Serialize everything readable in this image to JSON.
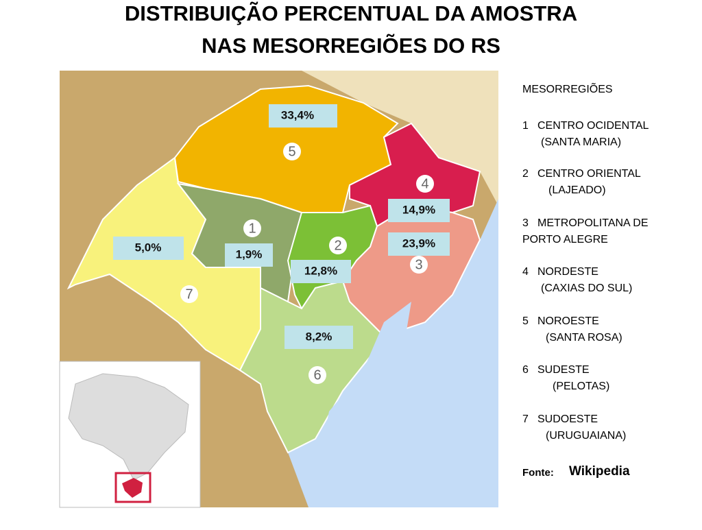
{
  "title": [
    "DISTRIBUIÇÃO PERCENTUAL DA AMOSTRA",
    "NAS MESORREGIÕES DO RS"
  ],
  "map": {
    "regions": [
      {
        "number": "1",
        "share": "1,9%"
      },
      {
        "number": "2",
        "share": "12,8%"
      },
      {
        "number": "3",
        "share": "23,9%"
      },
      {
        "number": "4",
        "share": "14,9%"
      },
      {
        "number": "5",
        "share": "33,4%"
      },
      {
        "number": "6",
        "share": "8,2%"
      },
      {
        "number": "7",
        "share": "5,0%"
      }
    ]
  },
  "legend": {
    "heading": "MESORREGIÕES",
    "items": [
      {
        "number": "1",
        "lines": [
          "CENTRO OCIDENTAL",
          "(SANTA MARIA)"
        ]
      },
      {
        "number": "2",
        "lines": [
          "CENTRO ORIENTAL",
          "(LAJEADO)"
        ]
      },
      {
        "number": "3",
        "lines": [
          "METROPOLITANA DE",
          "PORTO ALEGRE"
        ]
      },
      {
        "number": "4",
        "lines": [
          "NORDESTE",
          "(CAXIAS DO SUL)"
        ]
      },
      {
        "number": "5",
        "lines": [
          "NOROESTE",
          "(SANTA ROSA)"
        ]
      },
      {
        "number": "6",
        "lines": [
          "SUDESTE",
          "(PELOTAS)"
        ]
      },
      {
        "number": "7",
        "lines": [
          "SUDOESTE",
          "(URUGUAIANA)"
        ]
      }
    ]
  },
  "source": {
    "label": "Fonte:",
    "name": "Wikipedia"
  }
}
